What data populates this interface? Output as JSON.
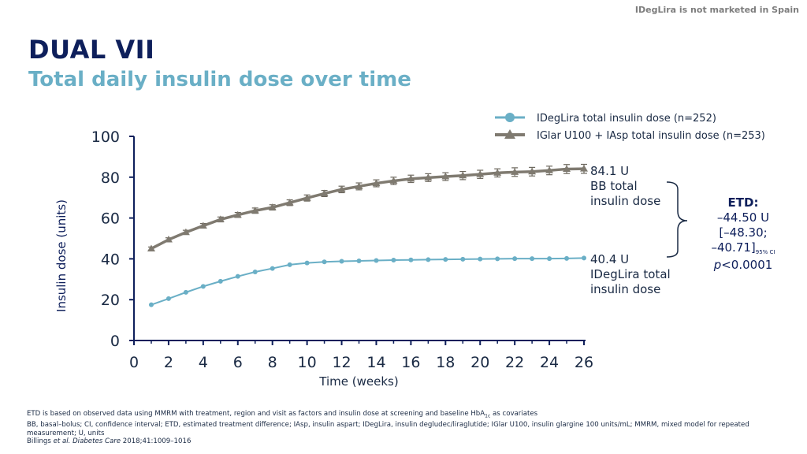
{
  "disclaimer": "IDegLira is not marketed in Spain",
  "header": {
    "title": "DUAL VII",
    "subtitle": "Total daily insulin dose over time"
  },
  "colors": {
    "ideglira": "#6aafc6",
    "iglar": "#7f7a70",
    "axis": "#0e1f5b"
  },
  "chart_data": {
    "type": "line",
    "title": "Total daily insulin dose over time",
    "xlabel": "Time (weeks)",
    "ylabel": "Insulin dose (units)",
    "xlim": [
      0,
      26
    ],
    "ylim": [
      0,
      100
    ],
    "xticks": [
      "0",
      "2",
      "4",
      "6",
      "8",
      "10",
      "12",
      "14",
      "16",
      "18",
      "20",
      "22",
      "24",
      "26"
    ],
    "yticks": [
      "0",
      "20",
      "40",
      "60",
      "80",
      "100"
    ],
    "legend_position": "top-right",
    "series": [
      {
        "name": "IDegLira total insulin dose (n=252)",
        "marker": "circle",
        "color": "#6aafc6",
        "x": [
          1,
          2,
          3,
          4,
          5,
          6,
          7,
          8,
          9,
          10,
          11,
          12,
          13,
          14,
          15,
          16,
          17,
          18,
          19,
          20,
          21,
          22,
          23,
          24,
          25,
          26
        ],
        "values": [
          17.5,
          20.5,
          23.6,
          26.5,
          29.0,
          31.4,
          33.6,
          35.3,
          37.1,
          38.0,
          38.5,
          38.8,
          39.0,
          39.2,
          39.4,
          39.5,
          39.6,
          39.7,
          39.8,
          39.9,
          40.0,
          40.1,
          40.1,
          40.1,
          40.2,
          40.4
        ]
      },
      {
        "name": "IGlar U100 + IAsp total insulin dose (n=253)",
        "marker": "triangle",
        "color": "#7f7a70",
        "error_bars": true,
        "x": [
          1,
          2,
          3,
          4,
          5,
          6,
          7,
          8,
          9,
          10,
          11,
          12,
          13,
          14,
          15,
          16,
          17,
          18,
          19,
          20,
          21,
          22,
          23,
          24,
          25,
          26
        ],
        "values": [
          45.0,
          49.4,
          53.0,
          56.2,
          59.3,
          61.5,
          63.6,
          65.2,
          67.5,
          69.8,
          72.0,
          74.0,
          75.5,
          77.0,
          78.2,
          79.2,
          79.8,
          80.3,
          80.8,
          81.4,
          82.1,
          82.5,
          82.7,
          83.3,
          84.0,
          84.1
        ],
        "errors": [
          0.8,
          0.9,
          1.0,
          1.1,
          1.2,
          1.2,
          1.3,
          1.3,
          1.4,
          1.5,
          1.5,
          1.6,
          1.7,
          1.7,
          1.8,
          1.8,
          1.9,
          1.9,
          2.0,
          2.0,
          2.0,
          2.1,
          2.1,
          2.1,
          2.2,
          2.2
        ]
      }
    ],
    "annotations": {
      "iglar_end": [
        "84.1 U",
        "BB total",
        "insulin dose"
      ],
      "ideglira_end": [
        "40.4 U",
        "IDegLira total",
        "insulin dose"
      ]
    }
  },
  "etd": {
    "label": "ETD:",
    "value": "–44.50 U",
    "ci_line1": "[–48.30;",
    "ci_line2": "–40.71]",
    "ci_sub": "95% CI",
    "p_italic": "p",
    "p_value": "<0.0001"
  },
  "footer": {
    "line1_a": "ETD is based on observed data using MMRM with treatment, region and visit as factors and insulin dose at screening and baseline HbA",
    "line1_sub": "1c",
    "line1_b": " as covariates",
    "line2": "BB, basal–bolus; CI, confidence interval; ETD, estimated treatment difference; IAsp, insulin aspart; IDegLira, insulin degludec/liraglutide; IGlar U100, insulin glargine 100 units/mL; MMRM, mixed model for repeated measurement; U, units",
    "ref_a": "Billings ",
    "ref_italic": "et al. Diabetes Care",
    "ref_b": " 2018;41:1009–1016"
  }
}
